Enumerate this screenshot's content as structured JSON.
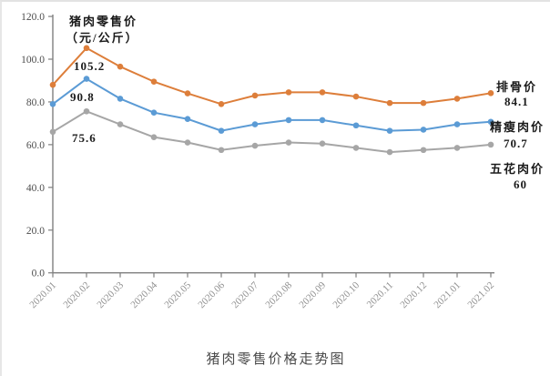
{
  "chart_data": {
    "type": "line",
    "inner_title": {
      "line1": "猪肉零售价",
      "line2": "（元/公斤）"
    },
    "caption": "猪肉零售价格走势图",
    "x_labels": [
      "2020.01",
      "2020.02",
      "2020.03",
      "2020.04",
      "2020.05",
      "2020.06",
      "2020.07",
      "2020.08",
      "2020.09",
      "2020.10",
      "2020.11",
      "2020.12",
      "2021.01",
      "2021.02"
    ],
    "y_axis": {
      "min": 0,
      "max": 120,
      "tick_values": [
        0,
        20,
        40,
        60,
        80,
        100,
        120
      ],
      "tick_labels": [
        "0.0",
        "20.0",
        "40.0",
        "60.0",
        "80.0",
        "100.0",
        "120.0"
      ]
    },
    "grid": false,
    "legend_position": "right-of-line-ends",
    "axis_color": "#7f7f7f",
    "x_label_color": "#8f8f8f",
    "y_label_color": "#4c4c4c",
    "series": [
      {
        "name": "排骨价",
        "color": "#dd7e3a",
        "values": [
          88,
          105.2,
          96.5,
          89.5,
          84,
          79,
          83,
          84.5,
          84.5,
          82.5,
          79.5,
          79.5,
          81.5,
          84.1
        ],
        "peak_label": "105.2",
        "end_label": "84.1"
      },
      {
        "name": "精瘦肉价",
        "color": "#5b9bd5",
        "values": [
          79,
          90.8,
          81.5,
          75,
          72,
          66.5,
          69.5,
          71.5,
          71.5,
          69,
          66.5,
          67,
          69.5,
          70.7
        ],
        "peak_label": "90.8",
        "end_label": "70.7"
      },
      {
        "name": "五花肉价",
        "color": "#a6a6a6",
        "values": [
          66,
          75.6,
          69.5,
          63.5,
          61,
          57.5,
          59.5,
          61,
          60.5,
          58.5,
          56.5,
          57.5,
          58.5,
          60
        ],
        "peak_label": "75.6",
        "end_label": "60"
      }
    ]
  }
}
